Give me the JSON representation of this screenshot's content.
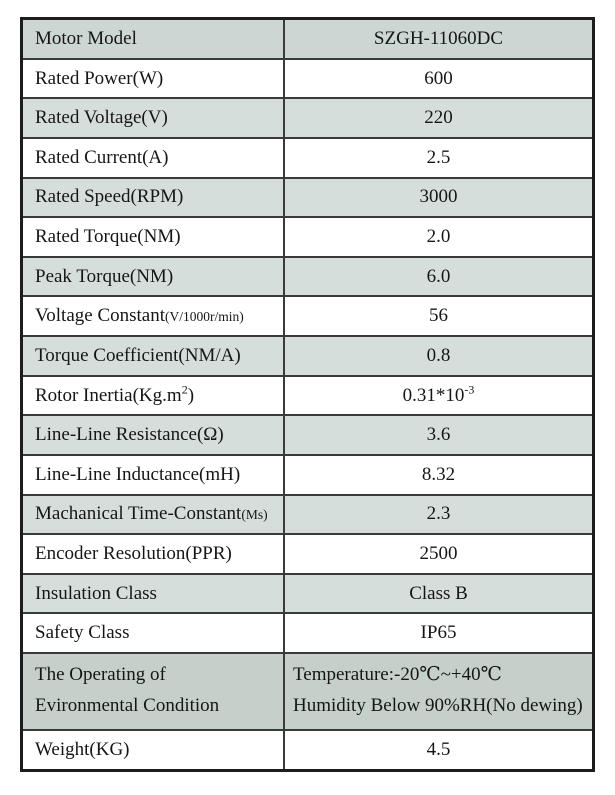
{
  "table": {
    "colors": {
      "stripe": "#d6dedb",
      "stripe_dark": "#ccd6d2",
      "stripe_darker": "#c6d0cb",
      "border": "#3a3a3a",
      "text": "#161616"
    },
    "rows": [
      {
        "label": "Motor Model",
        "value": "SZGH-11060DC"
      },
      {
        "label": "Rated Power(W)",
        "value": "600"
      },
      {
        "label": "Rated Voltage(V)",
        "value": "220"
      },
      {
        "label": "Rated Current(A)",
        "value": "2.5"
      },
      {
        "label": "Rated Speed(RPM)",
        "value": "3000"
      },
      {
        "label": "Rated Torque(NM)",
        "value": "2.0"
      },
      {
        "label": "Peak Torque(NM)",
        "value": "6.0"
      },
      {
        "label": "Voltage Constant",
        "label_small": "(V/1000r/min)",
        "value": "56"
      },
      {
        "label": "Torque Coefficient(NM/A)",
        "value": "0.8"
      },
      {
        "label": "Rotor Inertia(Kg.m",
        "label_sup": "2",
        "label_end": ")",
        "value": "0.31*10",
        "value_sup": "-3"
      },
      {
        "label": "Line-Line Resistance(Ω)",
        "value": "3.6"
      },
      {
        "label": "Line-Line Inductance(mH)",
        "value": "8.32"
      },
      {
        "label": "Machanical Time-Constant",
        "label_small": "(Ms)",
        "value": "2.3"
      },
      {
        "label": "Encoder Resolution(PPR)",
        "value": "2500"
      },
      {
        "label": "Insulation Class",
        "value": "Class B"
      },
      {
        "label": "Safety Class",
        "value": "IP65"
      },
      {
        "label_line1": "The Operating of",
        "label_line2": "Evironmental Condition",
        "value_line1": "Temperature:-20℃~+40℃",
        "value_line2": "Humidity Below 90%RH(No dewing)"
      },
      {
        "label": "Weight(KG)",
        "value": "4.5"
      }
    ]
  }
}
